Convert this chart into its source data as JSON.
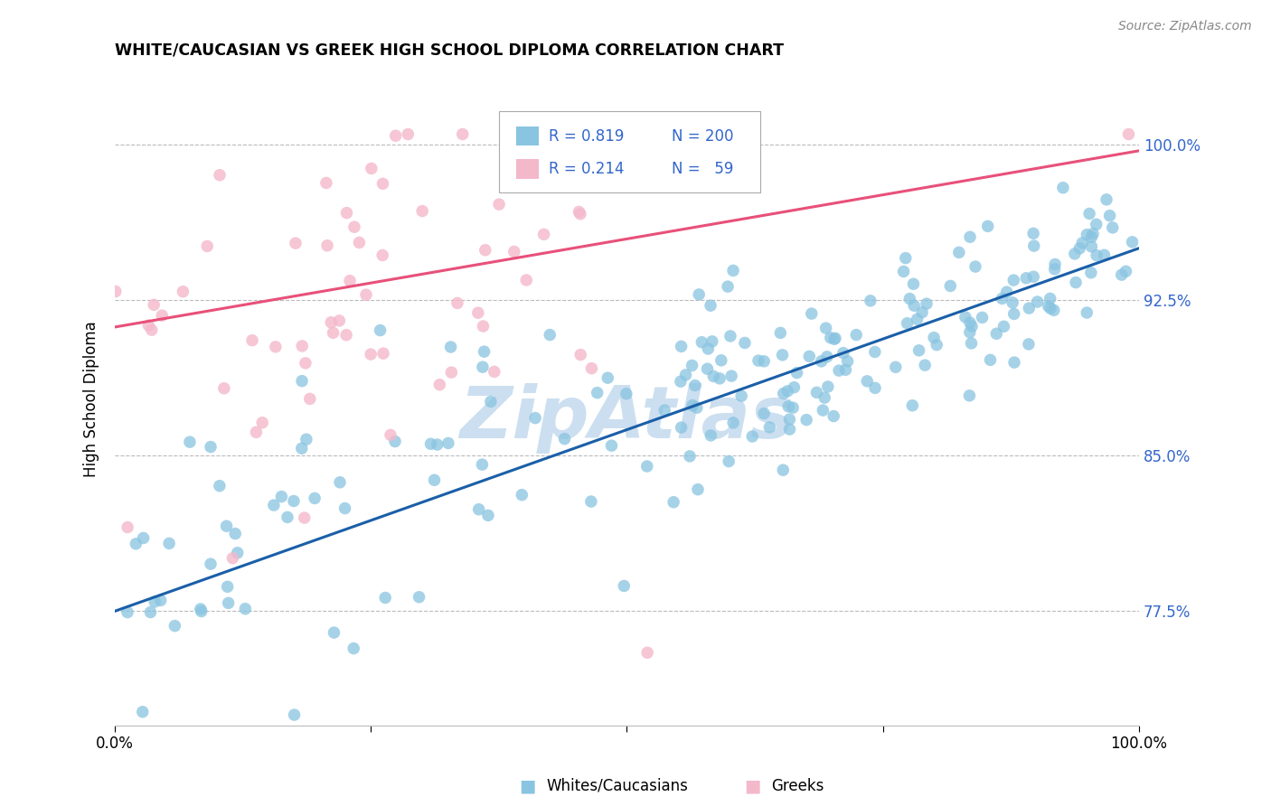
{
  "title": "WHITE/CAUCASIAN VS GREEK HIGH SCHOOL DIPLOMA CORRELATION CHART",
  "source": "Source: ZipAtlas.com",
  "ylabel": "High School Diploma",
  "ytick_labels": [
    "77.5%",
    "85.0%",
    "92.5%",
    "100.0%"
  ],
  "ytick_values": [
    0.775,
    0.85,
    0.925,
    1.0
  ],
  "xlim": [
    0.0,
    1.0
  ],
  "ylim": [
    0.72,
    1.035
  ],
  "blue_color": "#89c4e1",
  "pink_color": "#f4b8cb",
  "blue_line_color": "#1a5fa8",
  "pink_line_color": "#e8507a",
  "legend_r_blue": "0.819",
  "legend_n_blue": "200",
  "legend_r_pink": "0.214",
  "legend_n_pink": "59",
  "legend_text_color": "#3366cc",
  "watermark_color": "#ccdff0",
  "blue_seed": 42,
  "pink_seed": 7,
  "blue_n": 200,
  "pink_n": 59,
  "blue_slope": 0.175,
  "blue_intercept": 0.775,
  "pink_slope": 0.085,
  "pink_intercept": 0.912
}
